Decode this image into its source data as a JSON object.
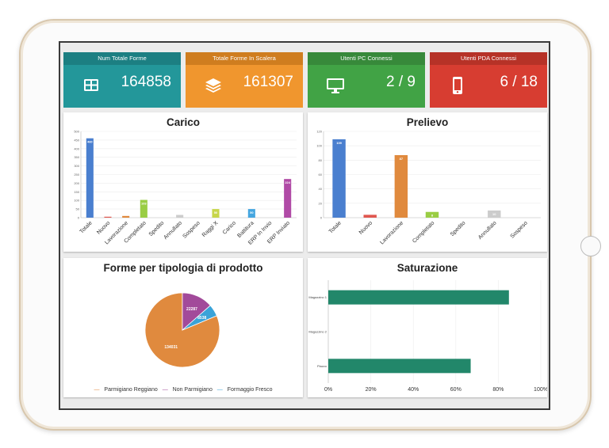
{
  "tiles": [
    {
      "title": "Num Totale Forme",
      "value": "164858",
      "icon": "grid-table-icon",
      "color": "#23979a"
    },
    {
      "title": "Totale Forme In Scalera",
      "value": "161307",
      "icon": "stacked-layers-icon",
      "color": "#f0962e"
    },
    {
      "title": "Utenti PC Connessi",
      "value": "2 / 9",
      "icon": "monitor-icon",
      "color": "#41a345"
    },
    {
      "title": "Utenti PDA Connessi",
      "value": "6 / 18",
      "icon": "smartphone-icon",
      "color": "#d73d31"
    }
  ],
  "chart_data": [
    {
      "type": "bar",
      "title": "Carico",
      "categories": [
        "Totale",
        "Nuovo",
        "Lavorazione",
        "Completato",
        "Spedito",
        "Annullato",
        "Sospeso",
        "Raggi X",
        "Carico",
        "Battitura",
        "ERP In Invio",
        "ERP Inviato"
      ],
      "values": [
        460,
        2,
        10,
        103,
        0,
        16,
        0,
        50,
        0,
        50,
        0,
        224
      ],
      "value_labels": [
        "460",
        "",
        "",
        "103",
        "",
        "",
        "",
        "50",
        "",
        "50",
        "",
        "224"
      ],
      "colors": [
        "#4a7fcf",
        "#e0574f",
        "#e08a3e",
        "#9acd44",
        "#cccccc",
        "#cccccc",
        "#cccccc",
        "#c7d64a",
        "#cccccc",
        "#45a6e0",
        "#cccccc",
        "#b04aa6"
      ],
      "ylim": [
        0,
        500
      ],
      "yticks": [
        0,
        50,
        100,
        150,
        200,
        250,
        300,
        350,
        400,
        450,
        500
      ],
      "grid": true
    },
    {
      "type": "bar",
      "title": "Prelievo",
      "categories": [
        "Totale",
        "Nuovo",
        "Lavorazione",
        "Completato",
        "Spedito",
        "Annullato",
        "Sospeso"
      ],
      "values": [
        109,
        4,
        87,
        8,
        0,
        10,
        0
      ],
      "value_labels": [
        "109",
        "",
        "87",
        "8",
        "",
        "10",
        ""
      ],
      "colors": [
        "#4a7fcf",
        "#e0574f",
        "#e08a3e",
        "#9acd44",
        "#cccccc",
        "#cccccc",
        "#cccccc"
      ],
      "ylim": [
        0,
        120
      ],
      "yticks": [
        0,
        20,
        40,
        60,
        80,
        100,
        120
      ],
      "grid": true
    },
    {
      "type": "pie",
      "title": "Forme per tipologia di prodotto",
      "slices": [
        {
          "label": "Parmigiano Reggiano",
          "value": 134031,
          "color": "#e08a3e",
          "value_label": "134031"
        },
        {
          "label": "Non Parmigiano",
          "value": 22287,
          "color": "#a24a9a",
          "value_label": "22287"
        },
        {
          "label": "Formaggio Fresco",
          "value": 8538,
          "color": "#3aa3d8",
          "value_label": "8538"
        }
      ],
      "legend_position": "bottom"
    },
    {
      "type": "bar",
      "orientation": "horizontal",
      "title": "Saturazione",
      "categories": [
        "Magazzino 1",
        "Magazzino 2",
        "Piazzo"
      ],
      "values": [
        85,
        0,
        67
      ],
      "color": "#22876a",
      "xlim": [
        0,
        100
      ],
      "xticks": [
        "0%",
        "20%",
        "40%",
        "60%",
        "80%",
        "100%"
      ],
      "grid": true
    }
  ]
}
